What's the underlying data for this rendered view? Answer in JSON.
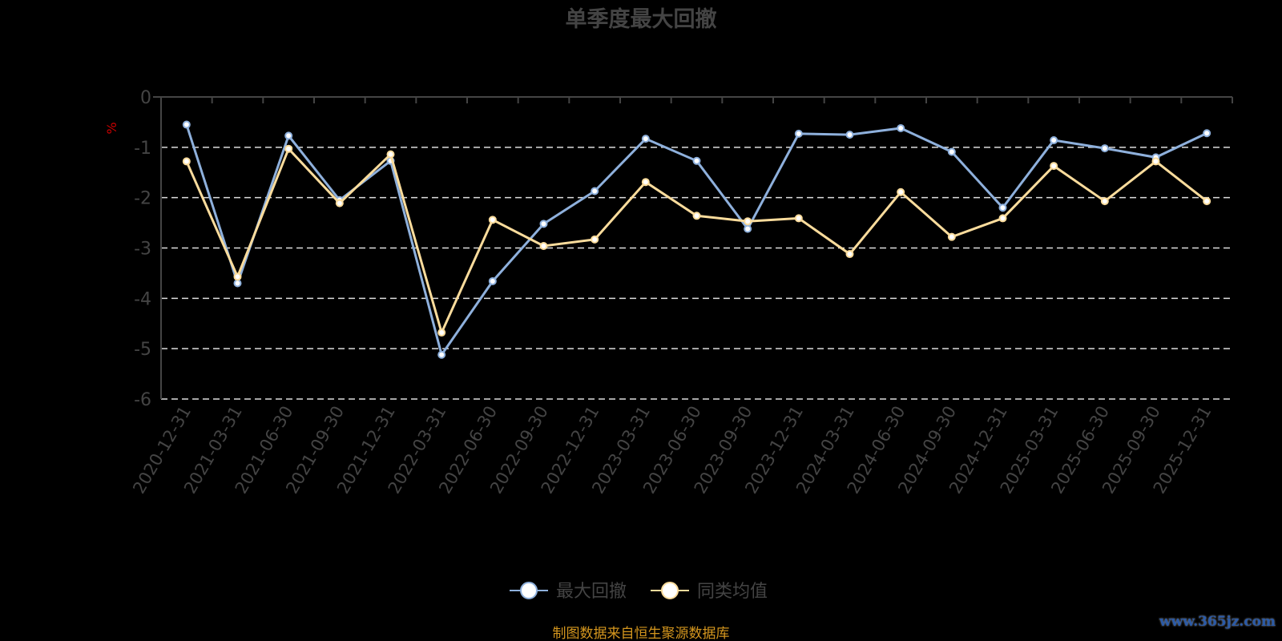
{
  "chart_data": {
    "type": "line",
    "title": "单季度最大回撤",
    "ylabel": "%",
    "ylim": [
      -6,
      0
    ],
    "yticks": [
      "0",
      "-1",
      "-2",
      "-3",
      "-4",
      "-5",
      "-6"
    ],
    "grid": true,
    "legend_position": "bottom",
    "categories": [
      "2020-12-31",
      "2021-03-31",
      "2021-06-30",
      "2021-09-30",
      "2021-12-31",
      "2022-03-31",
      "2022-06-30",
      "2022-09-30",
      "2022-12-31",
      "2023-03-31",
      "2023-06-30",
      "2023-09-30",
      "2023-12-31",
      "2024-03-31",
      "2024-06-30",
      "2024-09-30",
      "2024-12-31",
      "2025-03-31",
      "2025-06-30",
      "2025-09-30",
      "2025-12-31"
    ],
    "series": [
      {
        "name": "最大回撤",
        "color": "#8eb0dc",
        "values": [
          -0.55,
          -3.7,
          -0.77,
          -2.05,
          -1.27,
          -5.12,
          -3.66,
          -2.52,
          -1.87,
          -0.83,
          -1.27,
          -2.62,
          -0.73,
          -0.75,
          -0.62,
          -1.09,
          -2.2,
          -0.86,
          -1.02,
          -1.2,
          -0.72
        ]
      },
      {
        "name": "同类均值",
        "color": "#fbdc9c",
        "values": [
          -1.28,
          -3.57,
          -1.03,
          -2.11,
          -1.14,
          -4.68,
          -2.44,
          -2.96,
          -2.83,
          -1.69,
          -2.36,
          -2.47,
          -2.41,
          -3.12,
          -1.89,
          -2.78,
          -2.41,
          -1.37,
          -2.07,
          -1.28,
          -2.07
        ]
      }
    ]
  },
  "footer": {
    "source": "制图数据来自恒生聚源数据库",
    "watermark": "www.365jz.com"
  },
  "colors": {
    "axis_text": "#444444",
    "ylabel": "#cc0000",
    "footer": "#d4961e",
    "grid": "#dddddd"
  }
}
